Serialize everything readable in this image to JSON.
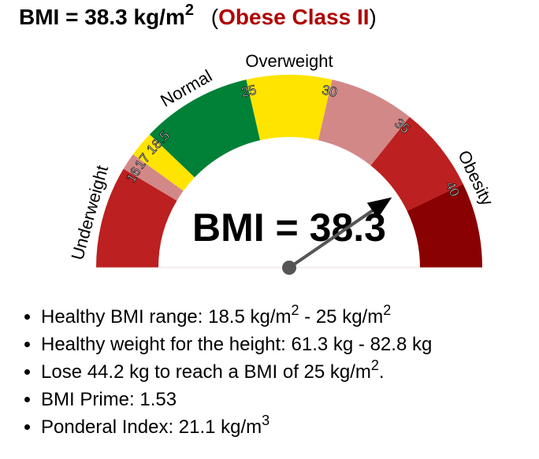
{
  "title": {
    "prefix": "BMI = 38.3 kg/m",
    "exp": "2",
    "category": "Obese Class II"
  },
  "chart_data": {
    "type": "gauge",
    "value": 38.3,
    "center_label": "BMI = 38.3",
    "range": [
      10,
      45
    ],
    "bands": [
      {
        "from": 10,
        "to": 16,
        "color": "#bc2020"
      },
      {
        "from": 16,
        "to": 17,
        "color": "#d38888"
      },
      {
        "from": 17,
        "to": 18.5,
        "color": "#ffe400"
      },
      {
        "from": 18.5,
        "to": 25,
        "color": "#008137"
      },
      {
        "from": 25,
        "to": 30,
        "color": "#ffe400"
      },
      {
        "from": 30,
        "to": 35,
        "color": "#d38888"
      },
      {
        "from": 35,
        "to": 40,
        "color": "#bc2020"
      },
      {
        "from": 40,
        "to": 45,
        "color": "#8a0101"
      }
    ],
    "ticks": [
      {
        "value": 16,
        "label": "16"
      },
      {
        "value": 17,
        "label": "17"
      },
      {
        "value": 18.5,
        "label": "18.5"
      },
      {
        "value": 25,
        "label": "25"
      },
      {
        "value": 30,
        "label": "30"
      },
      {
        "value": 35,
        "label": "35"
      },
      {
        "value": 40,
        "label": "40"
      }
    ],
    "categories": [
      {
        "label": "Underweight",
        "at": 13
      },
      {
        "label": "Normal",
        "at": 21.7
      },
      {
        "label": "Overweight",
        "at": 27.5
      },
      {
        "label": "Obesity",
        "at": 40
      }
    ],
    "needle_color": "#555555"
  },
  "facts": [
    {
      "text": "Healthy BMI range: 18.5 kg/m",
      "sup": "2",
      "text2": " - 25 kg/m",
      "sup2": "2",
      "text3": ""
    },
    {
      "text": "Healthy weight for the height: 61.3 kg - 82.8 kg",
      "sup": "",
      "text2": "",
      "sup2": "",
      "text3": ""
    },
    {
      "text": "Lose 44.2 kg to reach a BMI of 25 kg/m",
      "sup": "2",
      "text2": ".",
      "sup2": "",
      "text3": ""
    },
    {
      "text": "BMI Prime: 1.53",
      "sup": "",
      "text2": "",
      "sup2": "",
      "text3": ""
    },
    {
      "text": "Ponderal Index: 21.1 kg/m",
      "sup": "3",
      "text2": "",
      "sup2": "",
      "text3": ""
    }
  ]
}
